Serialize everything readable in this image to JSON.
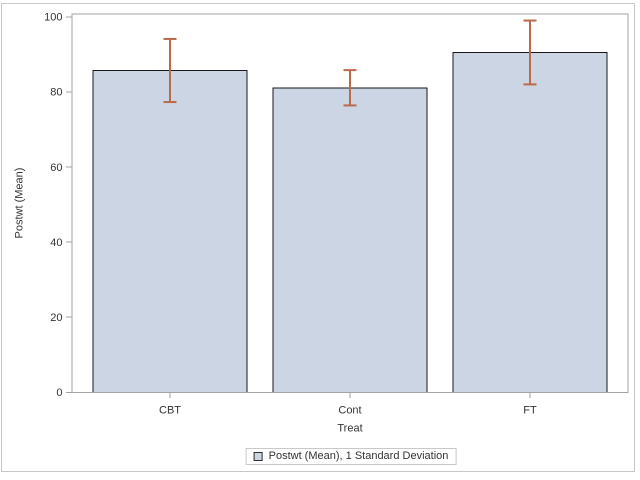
{
  "window": {
    "background": "#ffffff",
    "border_color": "#c7c7c7"
  },
  "chart_data": {
    "type": "bar",
    "title": "",
    "categories": [
      "CBT",
      "Cont",
      "FT"
    ],
    "series": [
      {
        "name": "Postwt (Mean)",
        "values": [
          85.7,
          81.1,
          90.5
        ],
        "error_plus": [
          8.4,
          4.7,
          8.5
        ],
        "error_minus": [
          8.4,
          4.7,
          8.5
        ],
        "error_stat": "1 Standard Deviation"
      }
    ],
    "xlabel": "Treat",
    "ylabel": "Postwt (Mean)",
    "ylim": [
      0,
      100
    ],
    "yticks": [
      0,
      20,
      40,
      60,
      80,
      100
    ],
    "grid": false,
    "legend": {
      "position": "bottom-center",
      "label": "Postwt (Mean), 1 Standard Deviation",
      "swatch": "legend-swatch-icon"
    },
    "colors": {
      "bar_fill": "#cbd5e3",
      "bar_outline": "#17171b",
      "error_bar": "#bc694a",
      "axis_frame": "#a3a3a3",
      "tick_mark": "#a3a3a3",
      "text": "#333333",
      "legend_border": "#c9c9c9",
      "legend_swatch_border": "#2f2f33",
      "window_border": "#c7c7c7"
    }
  }
}
